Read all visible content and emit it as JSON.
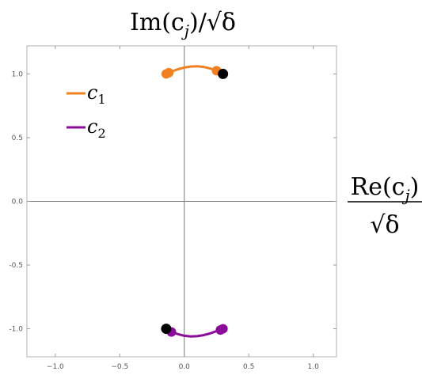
{
  "chart_data": {
    "type": "line",
    "x_ticks": [
      "−1.0",
      "−0.5",
      "0.0",
      "0.5",
      "1.0"
    ],
    "x_tick_values": [
      -1.0,
      -0.5,
      0.0,
      0.5,
      1.0
    ],
    "y_ticks": [
      "1.0",
      "0.5",
      "0.0",
      "-0.5",
      "-1.0"
    ],
    "y_tick_values": [
      1.0,
      0.5,
      0.0,
      -0.5,
      -1.0
    ],
    "xlim": [
      -1.22,
      1.18
    ],
    "ylim": [
      -1.22,
      1.22
    ],
    "grid": false,
    "legend_placement": "top-left",
    "series": [
      {
        "name": "c1",
        "color": "#f08020",
        "x": [
          -0.14,
          -0.1,
          -0.05,
          0.0,
          0.05,
          0.1,
          0.15,
          0.2,
          0.25
        ],
        "y": [
          1.0,
          1.018,
          1.037,
          1.05,
          1.058,
          1.06,
          1.055,
          1.043,
          1.025
        ],
        "markers": [
          {
            "x": -0.14,
            "y": 1.0
          },
          {
            "x": -0.12,
            "y": 1.01
          },
          {
            "x": 0.25,
            "y": 1.025
          }
        ]
      },
      {
        "name": "c2",
        "color": "#8b0c9b",
        "x": [
          -0.1,
          -0.05,
          0.0,
          0.05,
          0.1,
          0.15,
          0.2,
          0.25,
          0.3
        ],
        "y": [
          -1.025,
          -1.042,
          -1.055,
          -1.06,
          -1.058,
          -1.05,
          -1.037,
          -1.018,
          -1.0
        ],
        "markers": [
          {
            "x": -0.1,
            "y": -1.025
          },
          {
            "x": 0.28,
            "y": -1.01
          },
          {
            "x": 0.3,
            "y": -1.0
          }
        ]
      }
    ],
    "endpoints": {
      "color": "#000000",
      "points": [
        {
          "x": 0.3,
          "y": 1.0
        },
        {
          "x": -0.14,
          "y": -1.0
        }
      ]
    },
    "x_axis_label": {
      "num": "Re(c",
      "sub": "j",
      "close": ")",
      "den": "√δ"
    },
    "y_axis_label": {
      "prefix": "Im(c",
      "sub": "j",
      "close": ")/√δ"
    },
    "legend": [
      {
        "label": "c",
        "sub": "1",
        "color": "#f08020"
      },
      {
        "label": "c",
        "sub": "2",
        "color": "#8b0c9b"
      }
    ]
  }
}
